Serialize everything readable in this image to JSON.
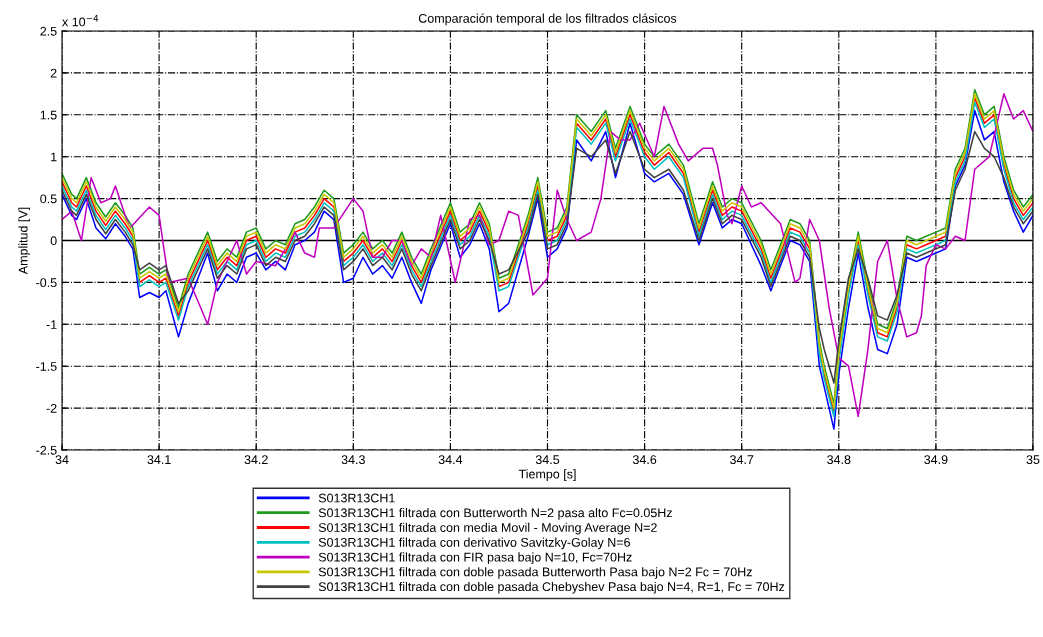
{
  "chart_data": {
    "type": "line",
    "title": "Comparación temporal de los filtrados clásicos",
    "xlabel": "Tiempo [s]",
    "ylabel": "Amplitud [V]",
    "annotations": [
      "x 10$^{−4}$"
    ],
    "xlim": [
      34,
      35
    ],
    "xticks": [
      34,
      34.1,
      34.2,
      34.3,
      34.4,
      34.5,
      34.6,
      34.7,
      34.8,
      34.9,
      35
    ],
    "ylim": [
      -2.5,
      2.5
    ],
    "yticks": [
      -2.5,
      -2,
      -1.5,
      -1,
      -0.5,
      0,
      0.5,
      1,
      1.5,
      2,
      2.5
    ],
    "grid": true,
    "legend": "bottom",
    "line_style": "solid",
    "marker": "none",
    "ref_lines": [
      {
        "axis": "y",
        "value": 0,
        "color": "#000000"
      }
    ],
    "x": [
      34.0,
      34.01,
      34.015,
      34.025,
      34.035,
      34.045,
      34.055,
      34.065,
      34.073,
      34.08,
      34.09,
      34.1,
      34.107,
      34.12,
      34.13,
      34.15,
      34.16,
      34.17,
      34.18,
      34.19,
      34.2,
      34.21,
      34.22,
      34.23,
      34.24,
      34.25,
      34.26,
      34.27,
      34.28,
      34.29,
      34.3,
      34.31,
      34.32,
      34.33,
      34.34,
      34.35,
      34.36,
      34.37,
      34.38,
      34.4,
      34.41,
      34.42,
      34.43,
      34.44,
      34.45,
      34.46,
      34.48,
      34.49,
      34.5,
      34.51,
      34.52,
      34.53,
      34.545,
      34.56,
      34.57,
      34.585,
      34.6,
      34.61,
      34.625,
      34.64,
      34.656,
      34.67,
      34.68,
      34.69,
      34.7,
      34.72,
      34.73,
      34.75,
      34.76,
      34.77,
      34.78,
      34.785,
      34.795,
      34.8,
      34.81,
      34.82,
      34.83,
      34.84,
      34.85,
      34.86,
      34.87,
      34.88,
      34.89,
      34.9,
      34.91,
      34.92,
      34.93,
      34.94,
      34.95,
      34.96,
      34.97,
      34.98,
      34.99,
      35.0
    ],
    "series": [
      {
        "name": "S013R13CH1",
        "color": "#0000ff",
        "values": [
          0.55,
          0.3,
          0.25,
          0.5,
          0.15,
          0.02,
          0.2,
          0.05,
          -0.1,
          -0.68,
          -0.62,
          -0.68,
          -0.6,
          -1.15,
          -0.75,
          -0.15,
          -0.6,
          -0.4,
          -0.5,
          -0.2,
          -0.15,
          -0.35,
          -0.25,
          -0.35,
          -0.05,
          0,
          0.1,
          0.35,
          0.25,
          -0.5,
          -0.45,
          -0.2,
          -0.4,
          -0.3,
          -0.45,
          -0.2,
          -0.5,
          -0.75,
          -0.35,
          0.2,
          -0.2,
          -0.05,
          0.2,
          -0.1,
          -0.85,
          -0.75,
          0.05,
          0.5,
          -0.2,
          -0.1,
          0.15,
          1.2,
          0.95,
          1.3,
          0.75,
          1.4,
          0.8,
          0.7,
          0.8,
          0.55,
          -0.05,
          0.45,
          0.15,
          0.25,
          0.2,
          -0.3,
          -0.6,
          0,
          -0.05,
          -0.25,
          -1.5,
          -1.75,
          -2.25,
          -1.6,
          -0.8,
          -0.15,
          -0.8,
          -1.3,
          -1.35,
          -1.0,
          -0.2,
          -0.25,
          -0.2,
          -0.15,
          -0.1,
          0.65,
          0.9,
          1.55,
          1.2,
          1.3,
          0.7,
          0.35,
          0.1,
          0.3
        ]
      },
      {
        "name": "S013R13CH1 filtrada con Butterworth N=2 pasa alto Fc=0.05Hz",
        "color": "#1f9a1f",
        "values": [
          0.8,
          0.55,
          0.5,
          0.75,
          0.45,
          0.28,
          0.45,
          0.3,
          0.15,
          -0.4,
          -0.32,
          -0.4,
          -0.35,
          -0.8,
          -0.4,
          0.1,
          -0.25,
          -0.1,
          -0.2,
          0.1,
          0.15,
          -0.1,
          0,
          -0.05,
          0.2,
          0.25,
          0.4,
          0.6,
          0.5,
          -0.15,
          -0.05,
          0.1,
          -0.1,
          0,
          -0.15,
          0.1,
          -0.2,
          -0.4,
          -0.1,
          0.45,
          0.1,
          0.2,
          0.45,
          0.2,
          -0.45,
          -0.4,
          0.3,
          0.75,
          0.1,
          0.15,
          0.4,
          1.5,
          1.3,
          1.55,
          1.1,
          1.6,
          1.15,
          1.0,
          1.15,
          0.9,
          0.2,
          0.7,
          0.4,
          0.5,
          0.45,
          0,
          -0.35,
          0.25,
          0.2,
          0,
          -1.2,
          -1.5,
          -1.95,
          -1.3,
          -0.5,
          0.1,
          -0.5,
          -1.0,
          -1.05,
          -0.7,
          0.05,
          0,
          0.05,
          0.1,
          0.15,
          0.85,
          1.1,
          1.8,
          1.5,
          1.6,
          1.0,
          0.6,
          0.4,
          0.55
        ]
      },
      {
        "name": "S013R13CH1 filtrada con media Movil - Moving Average N=2",
        "color": "#ff0000",
        "values": [
          0.7,
          0.45,
          0.4,
          0.65,
          0.35,
          0.18,
          0.35,
          0.2,
          0.05,
          -0.5,
          -0.42,
          -0.5,
          -0.45,
          -0.9,
          -0.5,
          0.0,
          -0.35,
          -0.2,
          -0.3,
          0.0,
          0.05,
          -0.2,
          -0.1,
          -0.15,
          0.1,
          0.15,
          0.3,
          0.5,
          0.4,
          -0.25,
          -0.15,
          0.0,
          -0.2,
          -0.1,
          -0.25,
          0.0,
          -0.3,
          -0.5,
          -0.2,
          0.35,
          0.0,
          0.1,
          0.35,
          0.1,
          -0.55,
          -0.5,
          0.2,
          0.65,
          0.0,
          0.05,
          0.3,
          1.4,
          1.2,
          1.45,
          1.0,
          1.5,
          1.05,
          0.9,
          1.05,
          0.8,
          0.1,
          0.6,
          0.3,
          0.4,
          0.35,
          -0.1,
          -0.45,
          0.15,
          0.1,
          -0.1,
          -1.3,
          -1.6,
          -2.05,
          -1.4,
          -0.6,
          0.0,
          -0.6,
          -1.1,
          -1.15,
          -0.8,
          -0.05,
          -0.1,
          -0.05,
          0.0,
          0.05,
          0.75,
          1.0,
          1.7,
          1.4,
          1.5,
          0.9,
          0.5,
          0.3,
          0.45
        ]
      },
      {
        "name": "S013R13CH1 filtrada con derivativo Savitzky-Golay N=6",
        "color": "#00bfbf",
        "values": [
          0.65,
          0.4,
          0.35,
          0.6,
          0.3,
          0.13,
          0.3,
          0.15,
          0,
          -0.55,
          -0.47,
          -0.55,
          -0.5,
          -0.95,
          -0.55,
          -0.05,
          -0.4,
          -0.25,
          -0.35,
          -0.05,
          0,
          -0.25,
          -0.15,
          -0.2,
          0.05,
          0.1,
          0.25,
          0.45,
          0.35,
          -0.3,
          -0.2,
          -0.05,
          -0.25,
          -0.15,
          -0.3,
          -0.05,
          -0.35,
          -0.55,
          -0.25,
          0.3,
          -0.05,
          0.05,
          0.3,
          0.05,
          -0.6,
          -0.55,
          0.15,
          0.6,
          -0.05,
          0,
          0.25,
          1.35,
          1.15,
          1.4,
          0.95,
          1.45,
          1.0,
          0.85,
          1.0,
          0.75,
          0.05,
          0.55,
          0.25,
          0.35,
          0.3,
          -0.15,
          -0.5,
          0.1,
          0.05,
          -0.15,
          -1.35,
          -1.65,
          -2.1,
          -1.45,
          -0.65,
          -0.05,
          -0.65,
          -1.15,
          -1.2,
          -0.85,
          -0.1,
          -0.15,
          -0.1,
          -0.05,
          0,
          0.7,
          0.95,
          1.65,
          1.35,
          1.45,
          0.85,
          0.45,
          0.25,
          0.4
        ]
      },
      {
        "name": "S013R13CH1 filtrada con FIR pasa bajo N=10, Fc=70Hz",
        "color": "#bf00bf",
        "x": [
          34.0,
          34.01,
          34.02,
          34.03,
          34.04,
          34.05,
          34.055,
          34.065,
          34.07,
          34.09,
          34.1,
          34.11,
          34.13,
          34.15,
          34.16,
          34.18,
          34.19,
          34.2,
          34.22,
          34.23,
          34.24,
          34.25,
          34.26,
          34.265,
          34.28,
          34.3,
          34.31,
          34.32,
          34.33,
          34.34,
          34.35,
          34.36,
          34.37,
          34.38,
          34.39,
          34.405,
          34.42,
          34.43,
          34.44,
          34.45,
          34.46,
          34.47,
          34.485,
          34.5,
          34.51,
          34.52,
          34.53,
          34.545,
          34.555,
          34.565,
          34.575,
          34.585,
          34.595,
          34.61,
          34.62,
          34.635,
          34.645,
          34.66,
          34.67,
          34.675,
          34.685,
          34.69,
          34.7,
          34.71,
          34.72,
          34.74,
          34.755,
          34.76,
          34.77,
          34.78,
          34.79,
          34.8,
          34.81,
          34.82,
          34.83,
          34.84,
          34.85,
          34.86,
          34.87,
          34.88,
          34.885,
          34.89,
          34.9,
          34.91,
          34.92,
          34.93,
          34.94,
          34.955,
          34.97,
          34.98,
          34.99,
          35.0
        ],
        "values": [
          0.25,
          0.35,
          0.0,
          0.75,
          0.45,
          0.5,
          0.65,
          0.3,
          0.15,
          0.4,
          0.3,
          -0.5,
          -0.45,
          -1.0,
          -0.5,
          0.0,
          -0.4,
          -0.25,
          -0.3,
          -0.1,
          0.1,
          -0.15,
          -0.2,
          0.15,
          0.15,
          0.5,
          0.35,
          -0.2,
          -0.2,
          0.0,
          0.0,
          -0.3,
          -0.1,
          -0.2,
          0.3,
          -0.5,
          0.25,
          0.3,
          -0.05,
          0.0,
          0.35,
          0.3,
          -0.65,
          -0.45,
          0.6,
          0.25,
          0.0,
          0.1,
          0.5,
          1.3,
          1.2,
          1.2,
          1.4,
          1.0,
          1.6,
          1.15,
          0.95,
          1.1,
          1.1,
          0.9,
          0.3,
          0.2,
          0.65,
          0.4,
          0.45,
          0.2,
          -0.5,
          -0.45,
          0.25,
          0.0,
          -0.8,
          -1.4,
          -1.5,
          -2.1,
          -1.3,
          -0.25,
          0.0,
          -0.7,
          -1.15,
          -1.1,
          -0.9,
          -0.3,
          -0.05,
          -0.1,
          0.05,
          0.0,
          0.85,
          1.0,
          1.75,
          1.45,
          1.55,
          1.3
        ]
      },
      {
        "name": "S013R13CH1 filtrada con doble pasada Butterworth Pasa bajo N=2 Fc = 70Hz",
        "color": "#c8c800",
        "values": [
          0.75,
          0.5,
          0.45,
          0.7,
          0.4,
          0.23,
          0.4,
          0.25,
          0.1,
          -0.45,
          -0.37,
          -0.45,
          -0.4,
          -0.85,
          -0.45,
          0.05,
          -0.3,
          -0.15,
          -0.25,
          0.05,
          0.1,
          -0.15,
          -0.05,
          -0.1,
          0.15,
          0.2,
          0.35,
          0.55,
          0.45,
          -0.2,
          -0.1,
          0.05,
          -0.15,
          -0.05,
          -0.2,
          0.05,
          -0.25,
          -0.45,
          -0.15,
          0.4,
          0.05,
          0.15,
          0.4,
          0.15,
          -0.5,
          -0.45,
          0.25,
          0.7,
          0.05,
          0.1,
          0.35,
          1.45,
          1.25,
          1.5,
          1.05,
          1.55,
          1.1,
          0.95,
          1.1,
          0.85,
          0.15,
          0.65,
          0.35,
          0.45,
          0.4,
          -0.05,
          -0.4,
          0.2,
          0.15,
          -0.05,
          -1.25,
          -1.55,
          -2.0,
          -1.35,
          -0.55,
          0.05,
          -0.55,
          -1.05,
          -1.1,
          -0.75,
          0,
          -0.05,
          0,
          0.05,
          0.1,
          0.8,
          1.05,
          1.75,
          1.45,
          1.55,
          0.95,
          0.55,
          0.35,
          0.5
        ]
      },
      {
        "name": "S013R13CH1 filtrada con doble pasada Chebyshev Pasa bajo N=4, R=1, Fc = 70Hz",
        "color": "#404040",
        "values": [
          0.6,
          0.35,
          0.3,
          0.55,
          0.25,
          0.08,
          0.25,
          0.1,
          -0.05,
          -0.35,
          -0.27,
          -0.35,
          -0.3,
          -0.75,
          -0.6,
          -0.1,
          -0.45,
          -0.3,
          -0.4,
          -0.1,
          -0.05,
          -0.3,
          -0.2,
          -0.25,
          0,
          0.05,
          0.2,
          0.4,
          0.3,
          -0.35,
          -0.25,
          -0.1,
          -0.3,
          -0.2,
          -0.35,
          -0.1,
          -0.4,
          -0.6,
          -0.3,
          0.25,
          -0.1,
          0,
          0.25,
          0,
          -0.4,
          -0.35,
          0.1,
          0.55,
          -0.1,
          -0.05,
          0.2,
          1.1,
          1.0,
          1.2,
          0.8,
          1.3,
          0.85,
          0.75,
          0.85,
          0.6,
          0,
          0.5,
          0.2,
          0.3,
          0.25,
          -0.2,
          -0.55,
          0.05,
          0,
          -0.2,
          -1.05,
          -1.3,
          -1.7,
          -1.2,
          -0.45,
          -0.1,
          -0.45,
          -0.9,
          -0.95,
          -0.65,
          -0.15,
          -0.2,
          -0.15,
          -0.1,
          -0.05,
          0.6,
          0.85,
          1.3,
          1.1,
          1.0,
          0.75,
          0.4,
          0.2,
          0.35
        ]
      }
    ]
  }
}
